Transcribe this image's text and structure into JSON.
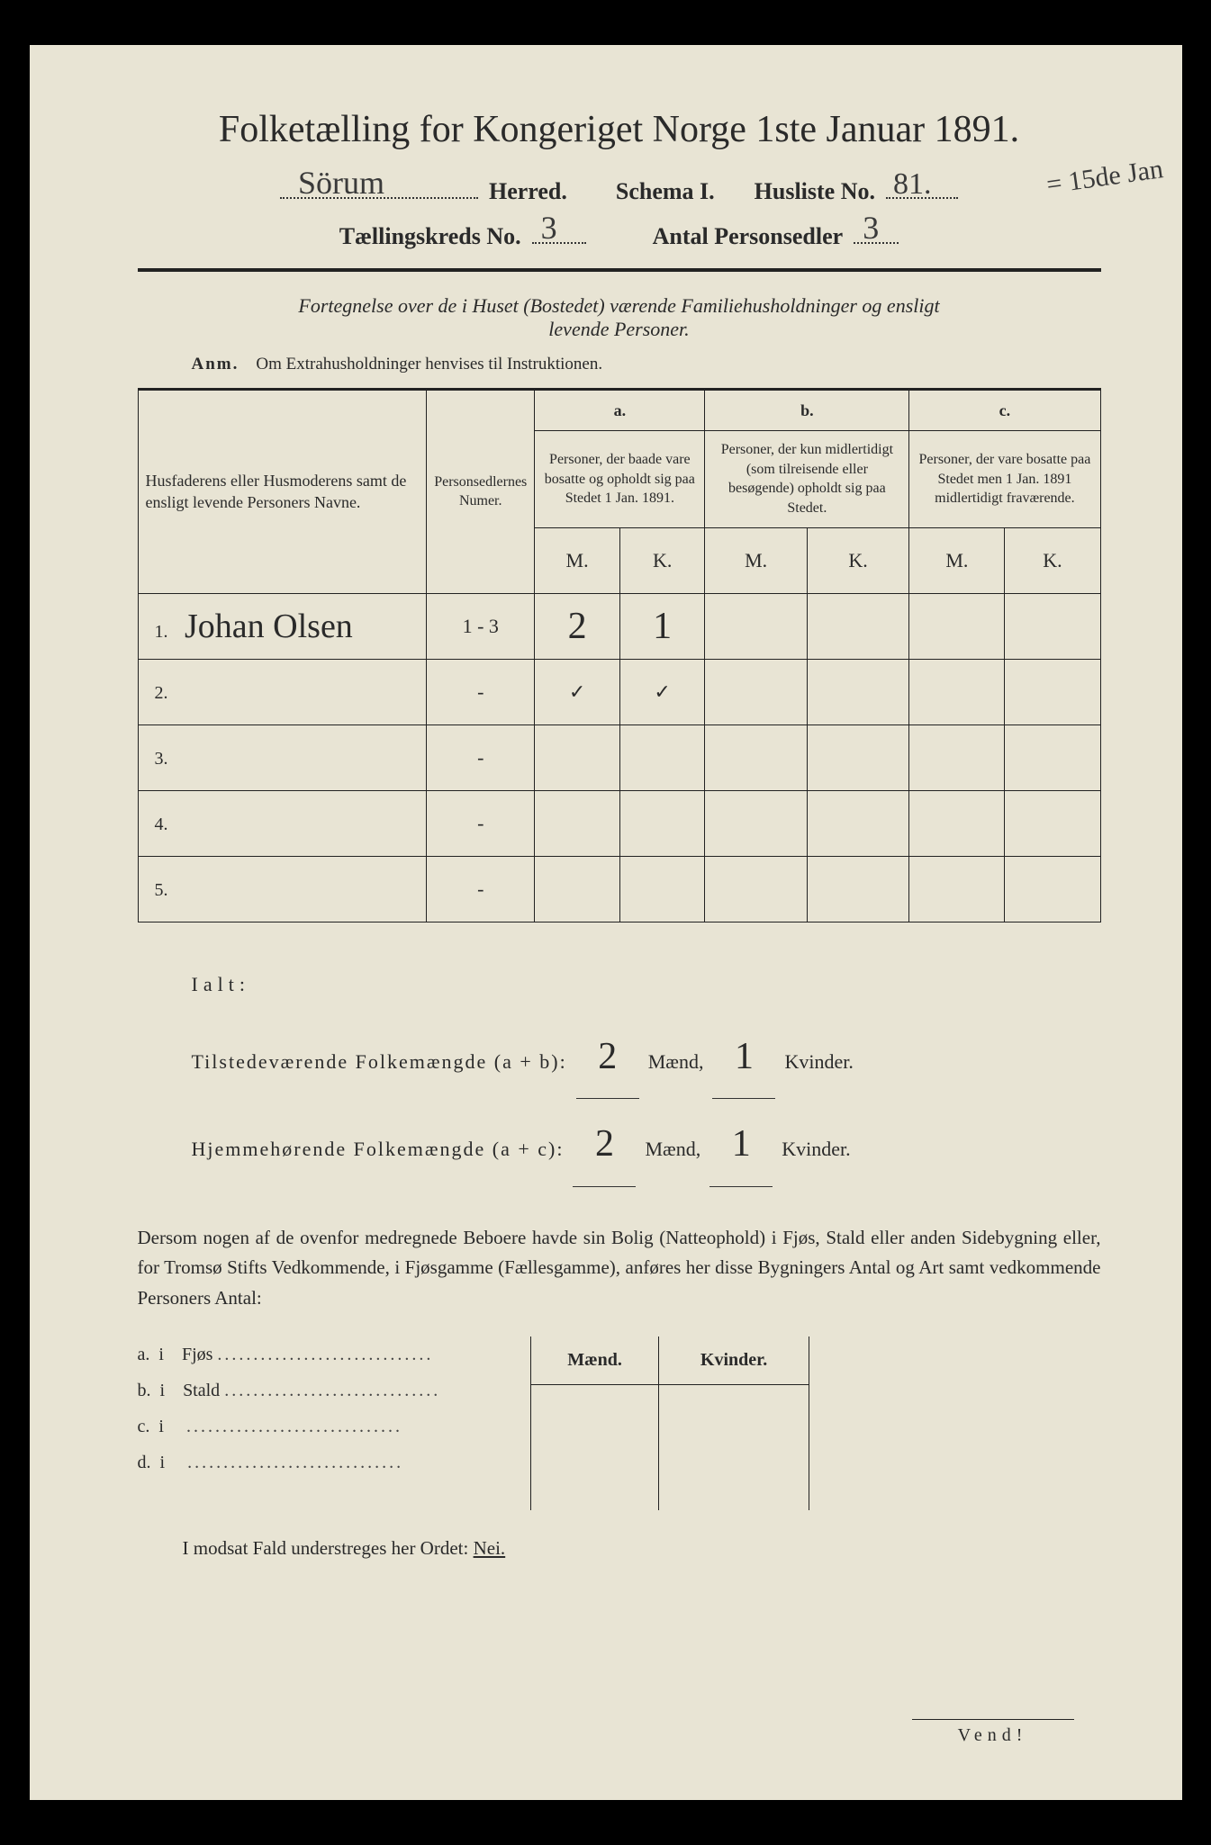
{
  "title": "Folketælling for Kongeriget Norge 1ste Januar 1891.",
  "header": {
    "herred_handwritten": "Sörum",
    "herred_label": "Herred.",
    "schema_label": "Schema I.",
    "husliste_label": "Husliste No.",
    "husliste_no": "81.",
    "margin_note": "= 15de Jan",
    "taellingskreds_label": "Tællingskreds No.",
    "taellingskreds_no": "3",
    "antal_label": "Antal Personsedler",
    "antal_no": "3"
  },
  "subtitle": {
    "line1": "Fortegnelse over de i Huset (Bostedet) værende Familiehusholdninger og ensligt",
    "line2": "levende Personer.",
    "anm_label": "Anm.",
    "anm_text": "Om Extrahusholdninger henvises til Instruktionen."
  },
  "table": {
    "head": {
      "col_names": "Husfaderens eller Husmoderens samt de ensligt levende Personers Navne.",
      "col_num": "Personsedlernes Numer.",
      "grp_a_label": "a.",
      "grp_a_text": "Personer, der baade vare bosatte og opholdt sig paa Stedet 1 Jan. 1891.",
      "grp_b_label": "b.",
      "grp_b_text": "Personer, der kun midlertidigt (som tilreisende eller besøgende) opholdt sig paa Stedet.",
      "grp_c_label": "c.",
      "grp_c_text": "Personer, der vare bosatte paa Stedet men 1 Jan. 1891 midlertidigt fraværende.",
      "m": "M.",
      "k": "K."
    },
    "rows": [
      {
        "n": "1.",
        "name": "Johan Olsen",
        "num": "1 - 3",
        "a_m": "2",
        "a_k": "1",
        "b_m": "",
        "b_k": "",
        "c_m": "",
        "c_k": ""
      },
      {
        "n": "2.",
        "name": "",
        "num": "-",
        "a_m": "✓",
        "a_k": "✓",
        "b_m": "",
        "b_k": "",
        "c_m": "",
        "c_k": ""
      },
      {
        "n": "3.",
        "name": "",
        "num": "-",
        "a_m": "",
        "a_k": "",
        "b_m": "",
        "b_k": "",
        "c_m": "",
        "c_k": ""
      },
      {
        "n": "4.",
        "name": "",
        "num": "-",
        "a_m": "",
        "a_k": "",
        "b_m": "",
        "b_k": "",
        "c_m": "",
        "c_k": ""
      },
      {
        "n": "5.",
        "name": "",
        "num": "-",
        "a_m": "",
        "a_k": "",
        "b_m": "",
        "b_k": "",
        "c_m": "",
        "c_k": ""
      }
    ]
  },
  "totals": {
    "lalt": "Ialt:",
    "line1_label": "Tilstedeværende Folkemængde (a + b):",
    "line1_m": "2",
    "line1_k": "1",
    "line2_label": "Hjemmehørende Folkemængde (a + c):",
    "line2_m": "2",
    "line2_k": "1",
    "maend": "Mænd,",
    "kvinder": "Kvinder."
  },
  "para": "Dersom nogen af de ovenfor medregnede Beboere havde sin Bolig (Natteophold) i Fjøs, Stald eller anden Sidebygning eller, for Tromsø Stifts Vedkommende, i Fjøsgamme (Fællesgamme), anføres her disse Bygningers Antal og Art samt vedkommende Personers Antal:",
  "sb": {
    "maend": "Mænd.",
    "kvinder": "Kvinder.",
    "rows": [
      {
        "l": "a.",
        "i": "i",
        "t": "Fjøs"
      },
      {
        "l": "b.",
        "i": "i",
        "t": "Stald"
      },
      {
        "l": "c.",
        "i": "i",
        "t": ""
      },
      {
        "l": "d.",
        "i": "i",
        "t": ""
      }
    ]
  },
  "nei": {
    "text": "I modsat Fald understreges her Ordet:",
    "word": "Nei."
  },
  "vend": "Vend!"
}
